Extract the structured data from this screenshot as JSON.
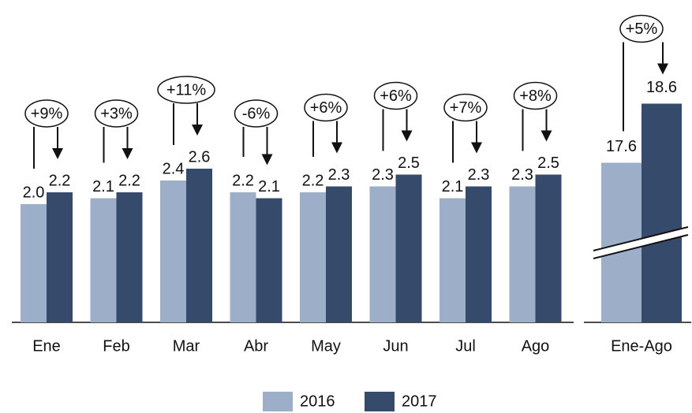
{
  "chart_data": {
    "type": "bar",
    "categories": [
      "Ene",
      "Feb",
      "Mar",
      "Abr",
      "May",
      "Jun",
      "Jul",
      "Ago"
    ],
    "series": [
      {
        "name": "2016",
        "color": "#9daec9",
        "values": [
          2.0,
          2.1,
          2.4,
          2.2,
          2.2,
          2.3,
          2.1,
          2.3
        ],
        "value_labels": [
          "2.0",
          "2.1",
          "2.4",
          "2.2",
          "2.2",
          "2.3",
          "2.1",
          "2.3"
        ]
      },
      {
        "name": "2017",
        "color": "#364a6b",
        "values": [
          2.2,
          2.2,
          2.6,
          2.1,
          2.3,
          2.5,
          2.3,
          2.5
        ],
        "value_labels": [
          "2.2",
          "2.2",
          "2.6",
          "2.1",
          "2.3",
          "2.5",
          "2.3",
          "2.5"
        ]
      }
    ],
    "changes": [
      "+9%",
      "+3%",
      "+11%",
      "-6%",
      "+6%",
      "+6%",
      "+7%",
      "+8%"
    ],
    "ylim": [
      0,
      5
    ],
    "total": {
      "category": "Ene-Ago",
      "values": [
        17.6,
        18.6
      ],
      "change": "+5%",
      "ylim": [
        14.9,
        19.9
      ]
    }
  }
}
